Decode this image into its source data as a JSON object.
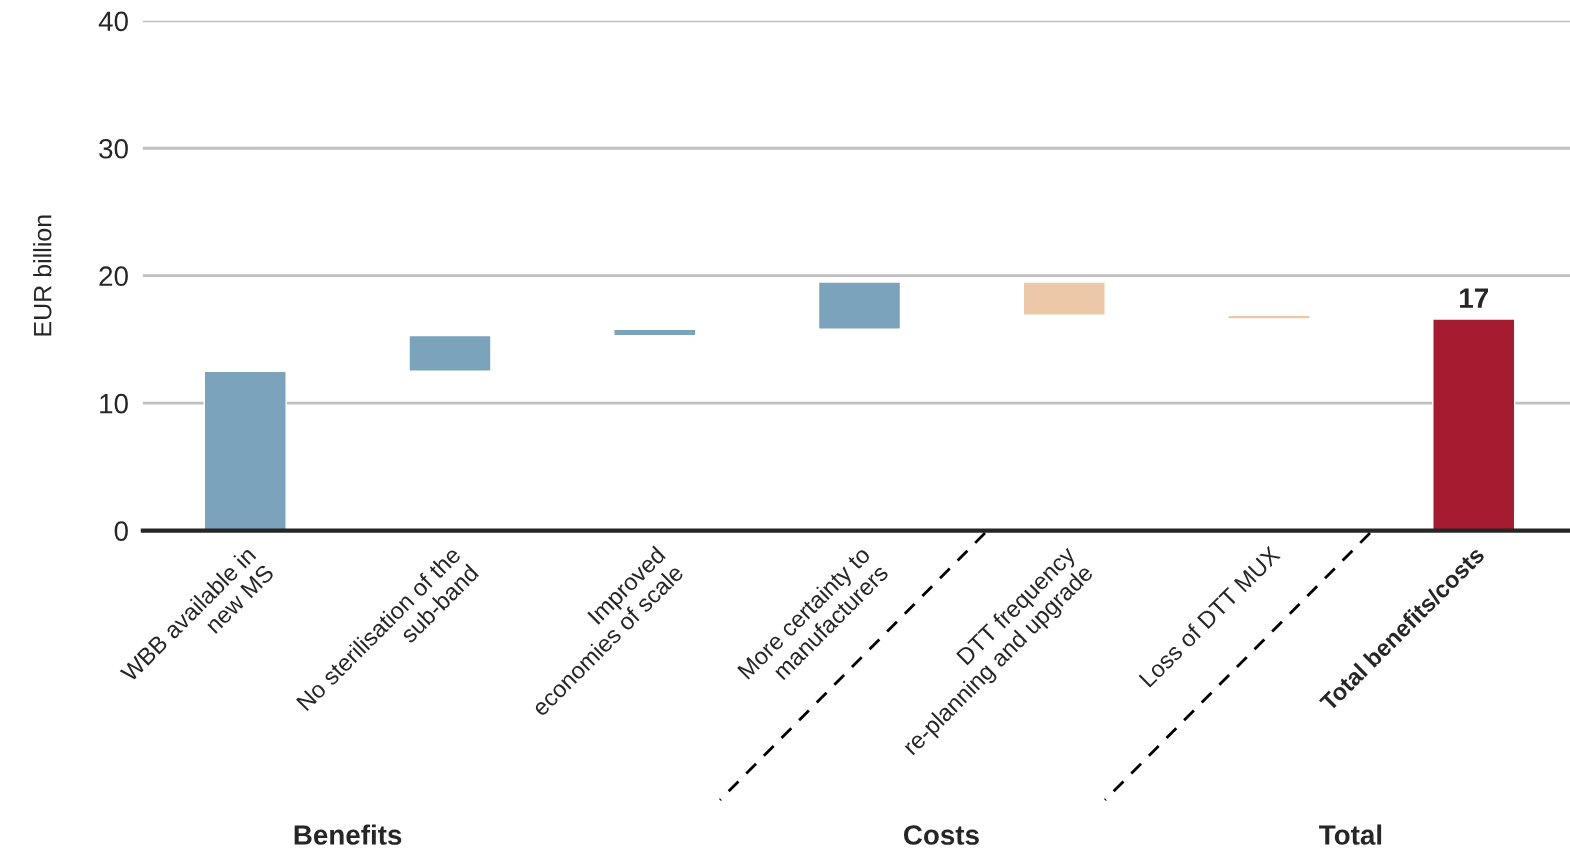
{
  "chart_data": {
    "type": "bar",
    "ylabel": "EUR billion",
    "categories": [
      "WBB available in\nnew MS",
      "No sterilisation of the\nsub-band",
      "Improved\neconomies of scale",
      "More certainty to\nmanufacturers",
      "DTT frequency\nre-planning and upgrade",
      "Loss of DTT MUX",
      "Total benefits/costs"
    ],
    "values": [
      12.5,
      2.8,
      0.5,
      3.7,
      -2.6,
      -0.3,
      16.6
    ],
    "base": [
      0,
      12.5,
      15.3,
      15.8,
      19.5,
      16.9,
      0
    ],
    "colors": [
      "#7ba3bb",
      "#7ba3bb",
      "#7ba3bb",
      "#7ba3bb",
      "#ecc8a8",
      "#ecc8a8",
      "#a51c30"
    ],
    "value_labels": [
      null,
      null,
      null,
      null,
      null,
      null,
      "17"
    ],
    "ylim": [
      0,
      40
    ],
    "yticks": [
      0,
      10,
      20,
      30,
      40
    ],
    "grid": "y",
    "legend": false,
    "annotations": [
      "Benefits",
      "Costs",
      "Total"
    ]
  }
}
